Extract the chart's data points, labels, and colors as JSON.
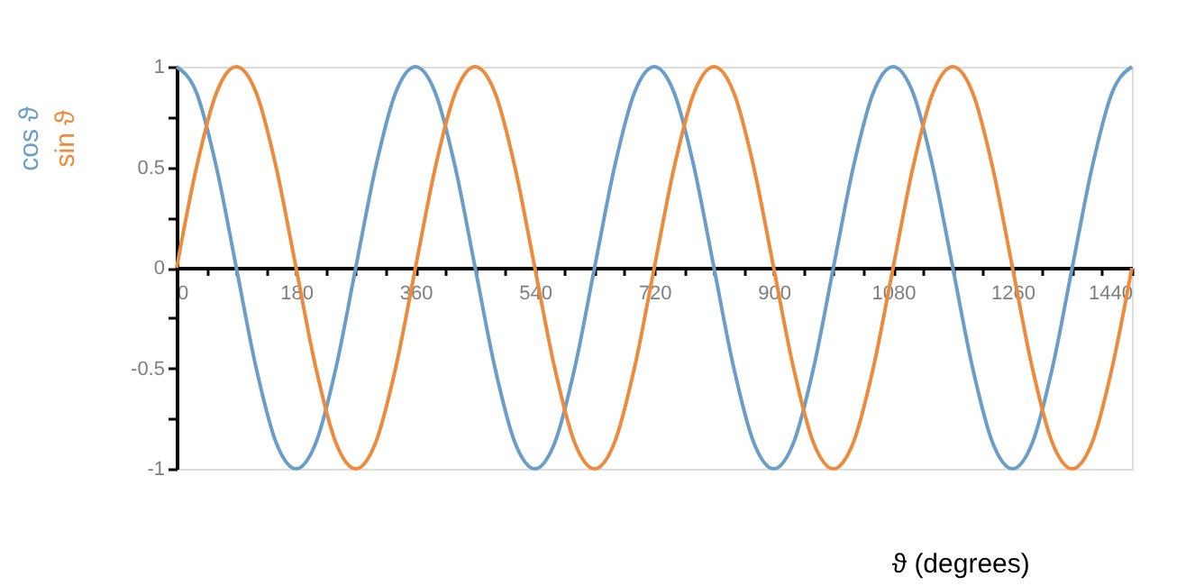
{
  "chart_data": {
    "type": "line",
    "xlabel": "ϑ (degrees)",
    "x": [
      0,
      30,
      60,
      90,
      120,
      150,
      180,
      210,
      240,
      270,
      300,
      330,
      360,
      390,
      420,
      450,
      480,
      510,
      540,
      570,
      600,
      630,
      660,
      690,
      720,
      750,
      780,
      810,
      840,
      870,
      900,
      930,
      960,
      990,
      1020,
      1050,
      1080,
      1110,
      1140,
      1170,
      1200,
      1230,
      1260,
      1290,
      1320,
      1350,
      1380,
      1410,
      1440
    ],
    "series": [
      {
        "name": "cos ϑ",
        "color": "#6a9ec9",
        "values": [
          1,
          0.87,
          0.5,
          0,
          -0.5,
          -0.87,
          -1,
          -0.87,
          -0.5,
          0,
          0.5,
          0.87,
          1,
          0.87,
          0.5,
          0,
          -0.5,
          -0.87,
          -1,
          -0.87,
          -0.5,
          0,
          0.5,
          0.87,
          1,
          0.87,
          0.5,
          0,
          -0.5,
          -0.87,
          -1,
          -0.87,
          -0.5,
          0,
          0.5,
          0.87,
          1,
          0.87,
          0.5,
          0,
          -0.5,
          -0.87,
          -1,
          -0.87,
          -0.5,
          0,
          0.5,
          0.87,
          1
        ]
      },
      {
        "name": "sin ϑ",
        "color": "#ed8b3d",
        "values": [
          0,
          0.5,
          0.87,
          1,
          0.87,
          0.5,
          0,
          -0.5,
          -0.87,
          -1,
          -0.87,
          -0.5,
          0,
          0.5,
          0.87,
          1,
          0.87,
          0.5,
          0,
          -0.5,
          -0.87,
          -1,
          -0.87,
          -0.5,
          0,
          0.5,
          0.87,
          1,
          0.87,
          0.5,
          0,
          -0.5,
          -0.87,
          -1,
          -0.87,
          -0.5,
          0,
          0.5,
          0.87,
          1,
          0.87,
          0.5,
          0,
          -0.5,
          -0.87,
          -1,
          -0.87,
          -0.5,
          0
        ]
      }
    ],
    "xlim": [
      0,
      1440
    ],
    "xticks": [
      0,
      {
        "value": 45,
        "label": null
      },
      {
        "value": 90,
        "label": null
      },
      {
        "value": 135,
        "label": null
      },
      180,
      {
        "value": 225,
        "label": null
      },
      {
        "value": 270,
        "label": null
      },
      {
        "value": 315,
        "label": null
      },
      360,
      {
        "value": 405,
        "label": null
      },
      {
        "value": 450,
        "label": null
      },
      {
        "value": 495,
        "label": null
      },
      540,
      {
        "value": 585,
        "label": null
      },
      {
        "value": 630,
        "label": null
      },
      {
        "value": 675,
        "label": null
      },
      720,
      {
        "value": 765,
        "label": null
      },
      {
        "value": 810,
        "label": null
      },
      {
        "value": 855,
        "label": null
      },
      900,
      {
        "value": 945,
        "label": null
      },
      {
        "value": 990,
        "label": null
      },
      {
        "value": 1035,
        "label": null
      },
      1080,
      {
        "value": 1125,
        "label": null
      },
      {
        "value": 1170,
        "label": null
      },
      {
        "value": 1215,
        "label": null
      },
      1260,
      {
        "value": 1305,
        "label": null
      },
      {
        "value": 1350,
        "label": null
      },
      {
        "value": 1395,
        "label": null
      },
      1440
    ],
    "ylim": [
      -1,
      1
    ],
    "yticks": [
      -1,
      {
        "value": -0.75,
        "label": null
      },
      -0.5,
      {
        "value": -0.25,
        "label": null
      },
      0,
      {
        "value": 0.25,
        "label": null
      },
      0.5,
      {
        "value": 0.75,
        "label": null
      },
      1
    ],
    "grid": false,
    "marker": "none",
    "line_style": "solid"
  }
}
